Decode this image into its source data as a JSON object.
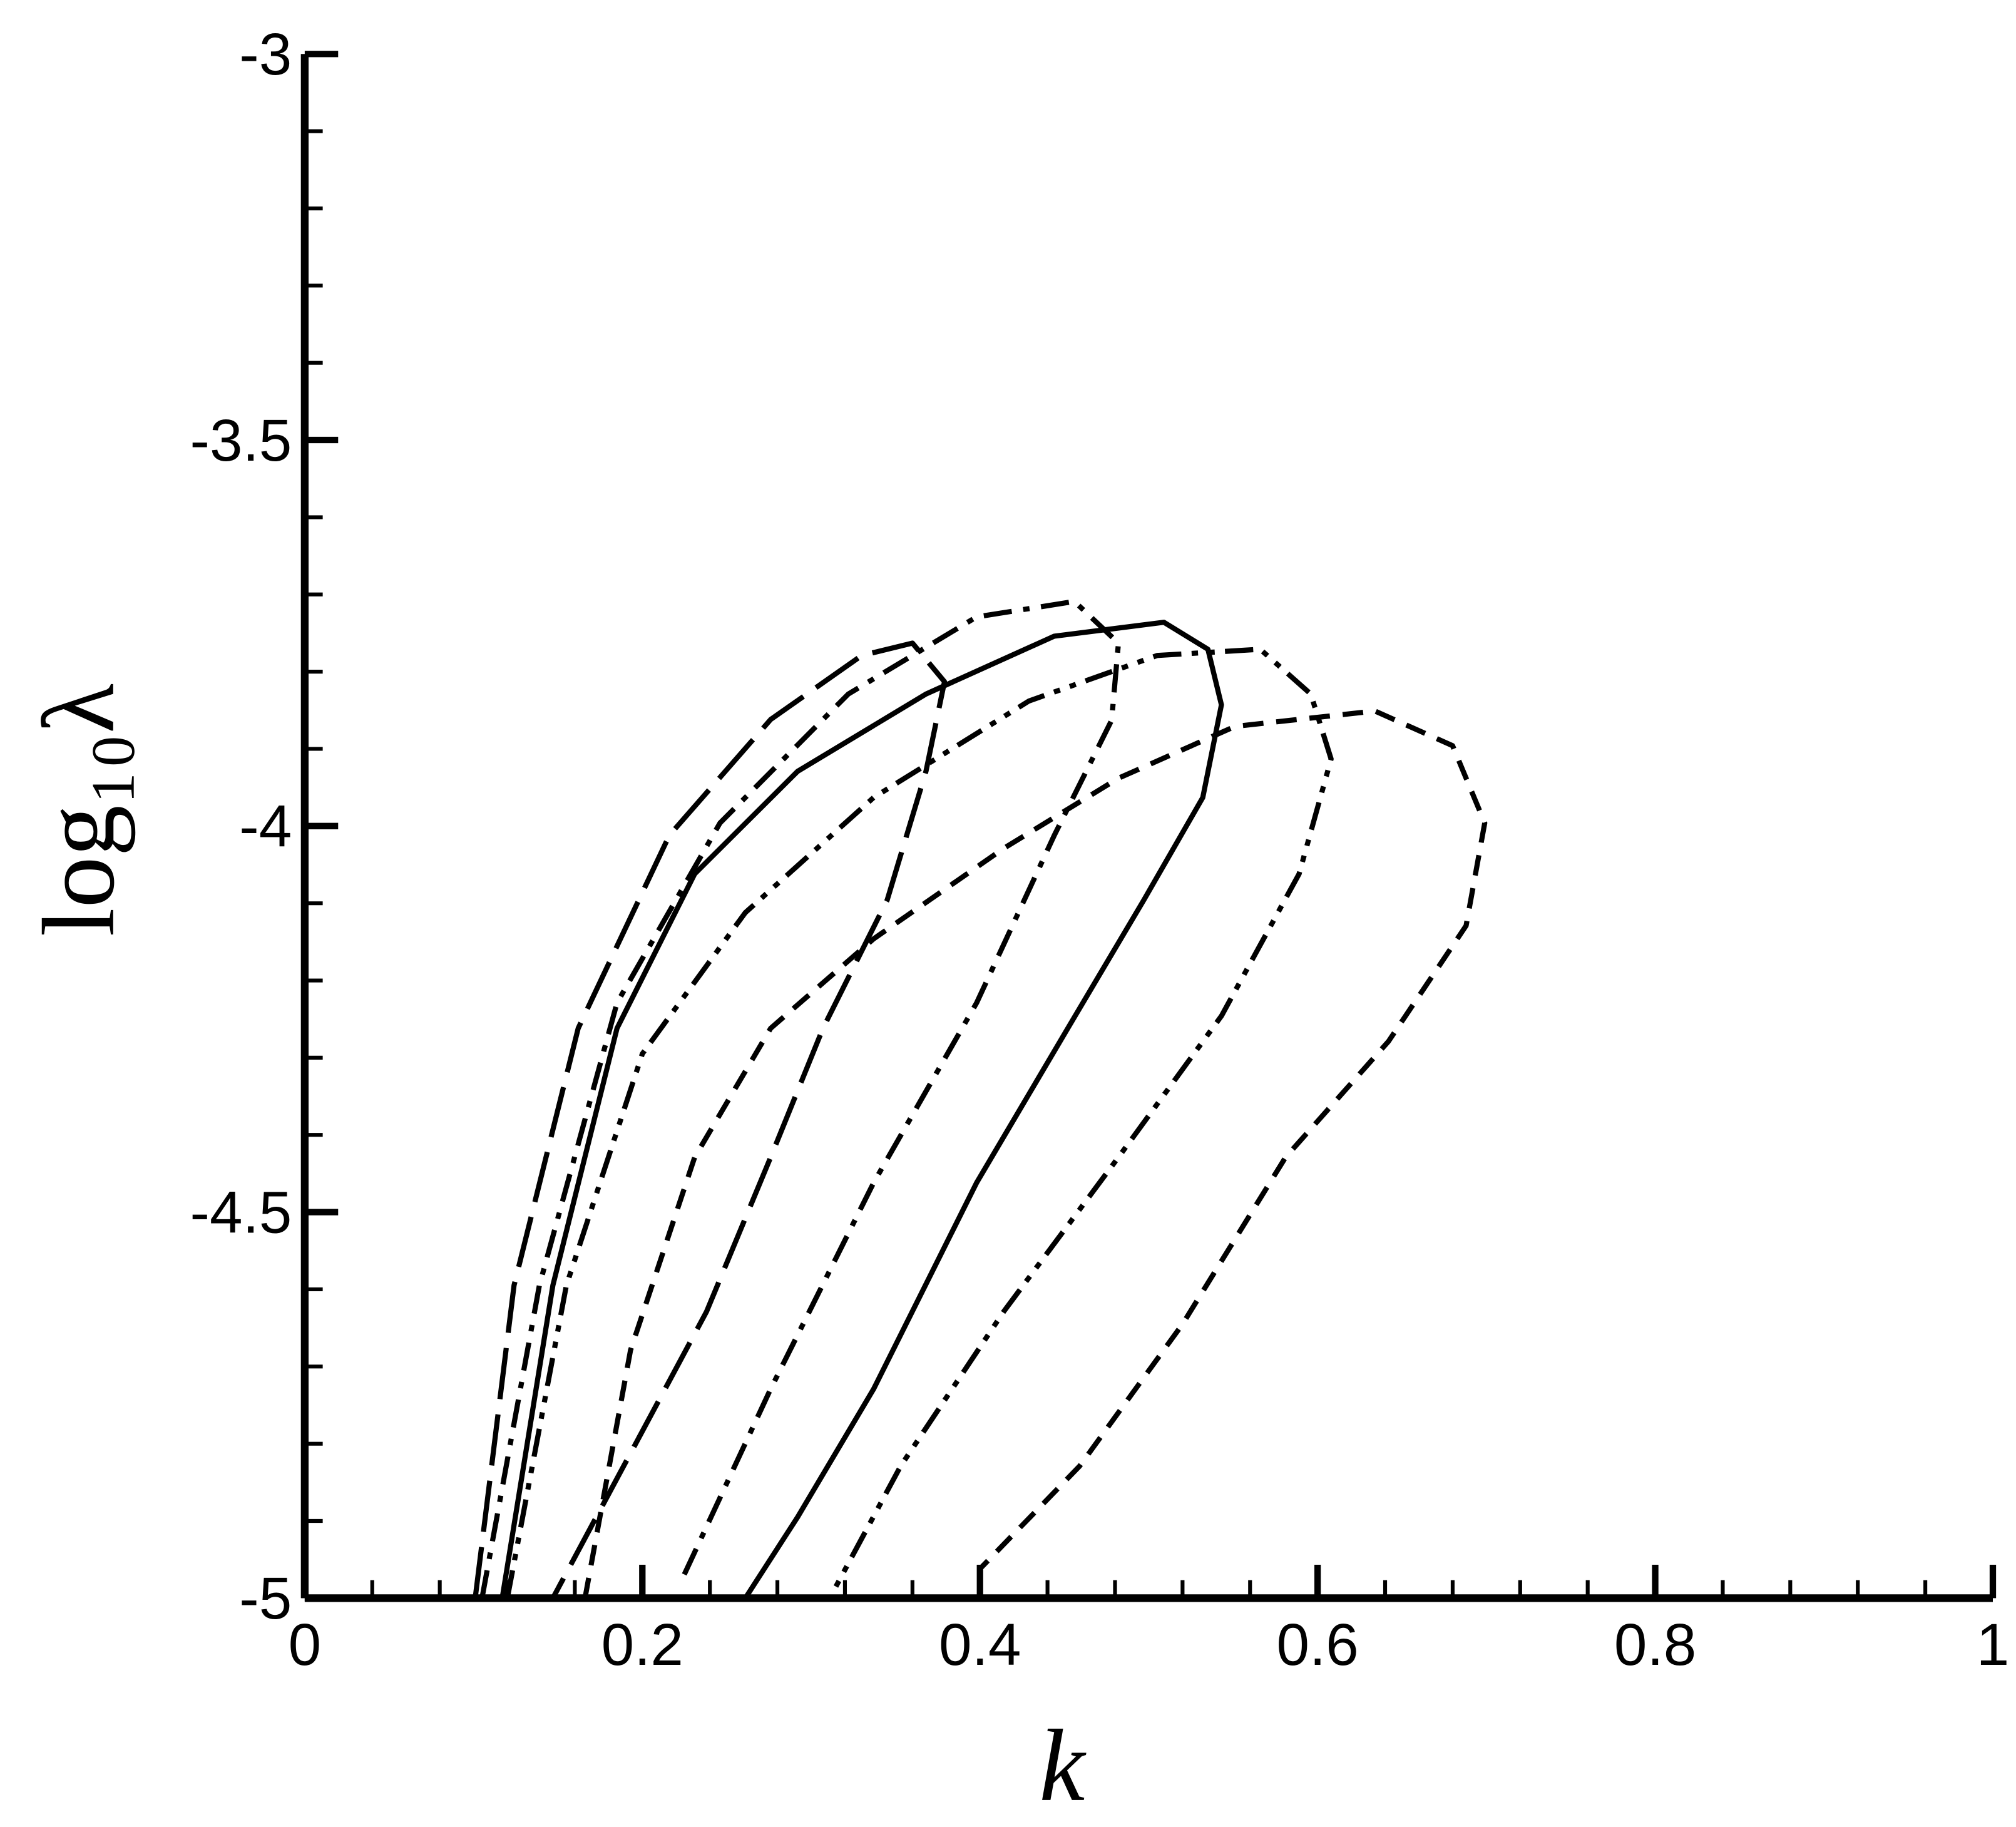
{
  "chart_data": {
    "type": "line",
    "x_label": "k",
    "y_label": "log₁₀λ",
    "xlim": [
      0,
      1
    ],
    "ylim": [
      -5,
      -3
    ],
    "xticks": [
      0,
      0.2,
      0.4,
      0.6,
      0.8,
      1
    ],
    "yticks": [
      -5,
      -4.5,
      -4,
      -3.5,
      -3
    ],
    "xminorticks": [
      0.04,
      0.08,
      0.12,
      0.16,
      0.24,
      0.28,
      0.32,
      0.36,
      0.44,
      0.48,
      0.52,
      0.56,
      0.64,
      0.68,
      0.72,
      0.76,
      0.84,
      0.88,
      0.92,
      0.96
    ],
    "yminorticks": [
      -4.9,
      -4.8,
      -4.7,
      -4.6,
      -4.4,
      -4.3,
      -4.2,
      -4.1,
      -3.9,
      -3.8,
      -3.7,
      -3.6,
      -3.4,
      -3.3,
      -3.2,
      -3.1
    ],
    "series": [
      {
        "color": "#000000",
        "dash": "solid",
        "x": [
          0.117,
          0.147,
          0.185,
          0.231,
          0.292,
          0.368,
          0.444,
          0.509,
          0.535,
          0.543,
          0.532,
          0.497,
          0.452,
          0.398,
          0.337,
          0.292,
          0.261
        ],
        "values": [
          -5,
          -4.595,
          -4.262,
          -4.062,
          -3.929,
          -3.829,
          -3.754,
          -3.736,
          -3.771,
          -3.843,
          -3.963,
          -4.096,
          -4.262,
          -4.462,
          -4.729,
          -4.895,
          -5
        ]
      },
      {
        "color": "#000000",
        "dash": "dashed",
        "x": [
          0.166,
          0.193,
          0.231,
          0.276,
          0.337,
          0.414,
          0.482,
          0.551,
          0.634,
          0.68,
          0.699,
          0.688,
          0.642,
          0.581,
          0.52,
          0.459,
          0.4
        ],
        "values": [
          -5,
          -4.679,
          -4.429,
          -4.262,
          -4.146,
          -4.029,
          -3.938,
          -3.871,
          -3.851,
          -3.896,
          -3.996,
          -4.129,
          -4.279,
          -4.429,
          -4.645,
          -4.829,
          -4.962
        ]
      },
      {
        "color": "#000000",
        "dash": "dashdot",
        "x": [
          0.105,
          0.139,
          0.185,
          0.246,
          0.322,
          0.398,
          0.456,
          0.482,
          0.478,
          0.444,
          0.398,
          0.337,
          0.276,
          0.223
        ],
        "values": [
          -5,
          -4.595,
          -4.229,
          -3.996,
          -3.829,
          -3.729,
          -3.709,
          -3.763,
          -3.863,
          -4.012,
          -4.229,
          -4.462,
          -4.729,
          -4.978
        ]
      },
      {
        "color": "#000000",
        "dash": "dashdotdot",
        "x": [
          0.12,
          0.155,
          0.2,
          0.261,
          0.337,
          0.429,
          0.505,
          0.566,
          0.596,
          0.608,
          0.589,
          0.543,
          0.482,
          0.414,
          0.353,
          0.311
        ],
        "values": [
          -5,
          -4.595,
          -4.295,
          -4.112,
          -3.963,
          -3.838,
          -3.779,
          -3.771,
          -3.829,
          -3.913,
          -4.062,
          -4.246,
          -4.429,
          -4.629,
          -4.829,
          -5
        ]
      },
      {
        "color": "#000000",
        "dash": "longdash",
        "x": [
          0.101,
          0.124,
          0.162,
          0.216,
          0.276,
          0.33,
          0.36,
          0.379,
          0.368,
          0.345,
          0.307,
          0.276,
          0.238,
          0.185,
          0.147
        ],
        "values": [
          -5,
          -4.595,
          -4.262,
          -4.012,
          -3.862,
          -3.779,
          -3.763,
          -3.813,
          -3.929,
          -4.096,
          -4.262,
          -4.429,
          -4.629,
          -4.845,
          -5
        ]
      }
    ]
  }
}
